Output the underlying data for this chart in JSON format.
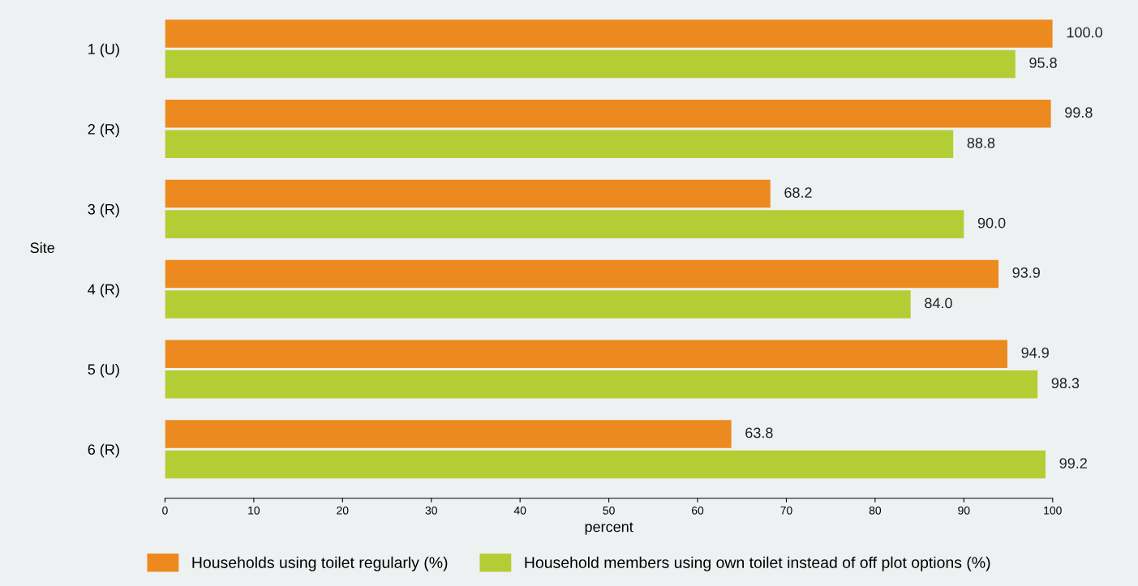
{
  "chart_data": {
    "type": "bar",
    "orientation": "horizontal",
    "ylabel": "Site",
    "xlabel": "percent",
    "categories": [
      "1 (U)",
      "2 (R)",
      "3 (R)",
      "4 (R)",
      "5 (U)",
      "6 (R)"
    ],
    "series": [
      {
        "name": "Households using toilet regularly (%)",
        "color": "#ec8a1f",
        "values": [
          100,
          99.8,
          68.2,
          93.9,
          94.9,
          63.8
        ],
        "value_labels": [
          "100.0",
          "99.8",
          "68.2",
          "93.9",
          "94.9",
          "63.8"
        ]
      },
      {
        "name": "Household members using own toilet instead of off plot options (%)",
        "color": "#b5cd34",
        "values": [
          95.8,
          88.8,
          90,
          84,
          98.3,
          99.2
        ],
        "value_labels": [
          "95.8",
          "88.8",
          "90.0",
          "84.0",
          "98.3",
          "99.2"
        ]
      }
    ],
    "xlim": [
      0,
      100
    ],
    "xticks": [
      0,
      10,
      20,
      30,
      40,
      50,
      60,
      70,
      80,
      90,
      100
    ],
    "grid": false,
    "legend": "bottom"
  }
}
